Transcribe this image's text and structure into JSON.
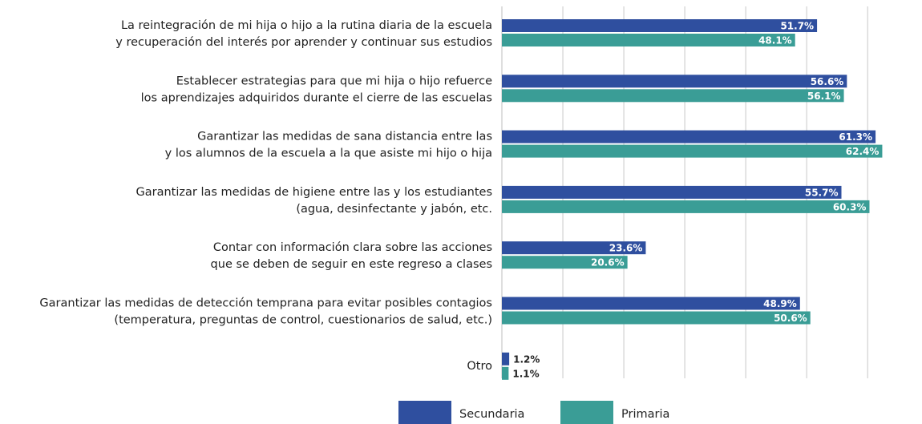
{
  "chart_data": {
    "type": "bar",
    "orientation": "horizontal",
    "categories": [
      [
        "La reintegración de mi hija o hijo a la rutina diaria de la escuela",
        "y recuperación del interés por aprender y continuar sus estudios"
      ],
      [
        "Establecer estrategias para que mi hija o hijo refuerce",
        "los aprendizajes adquiridos durante el cierre de las escuelas"
      ],
      [
        "Garantizar las medidas de sana distancia entre las",
        "y los alumnos de la escuela a la que asiste mi hijo o hija"
      ],
      [
        "Garantizar las medidas de higiene entre las y los estudiantes",
        "(agua, desinfectante y jabón, etc."
      ],
      [
        "Contar con información clara sobre las acciones",
        "que se deben de seguir en este regreso a clases"
      ],
      [
        "Garantizar las medidas de detección temprana para evitar posibles contagios",
        "(temperatura, preguntas de control, cuestionarios de salud, etc.)"
      ],
      [
        "Otro"
      ]
    ],
    "series": [
      {
        "name": "Secundaria",
        "color": "#2f4f9f",
        "values": [
          51.7,
          56.6,
          61.3,
          55.7,
          23.6,
          48.9,
          1.2
        ],
        "value_labels": [
          "51.7%",
          "56.6%",
          "61.3%",
          "55.7%",
          "23.6%",
          "48.9%",
          "1.2%"
        ]
      },
      {
        "name": "Primaria",
        "color": "#3a9d96",
        "values": [
          48.1,
          56.1,
          62.4,
          60.3,
          20.6,
          50.6,
          1.1
        ],
        "value_labels": [
          "48.1%",
          "56.1%",
          "62.4%",
          "60.3%",
          "20.6%",
          "50.6%",
          "1.1%"
        ]
      }
    ],
    "xlim": [
      0,
      63
    ],
    "xticks": [
      10,
      20,
      30,
      40,
      50,
      60
    ],
    "grid": true,
    "legend": "bottom"
  }
}
